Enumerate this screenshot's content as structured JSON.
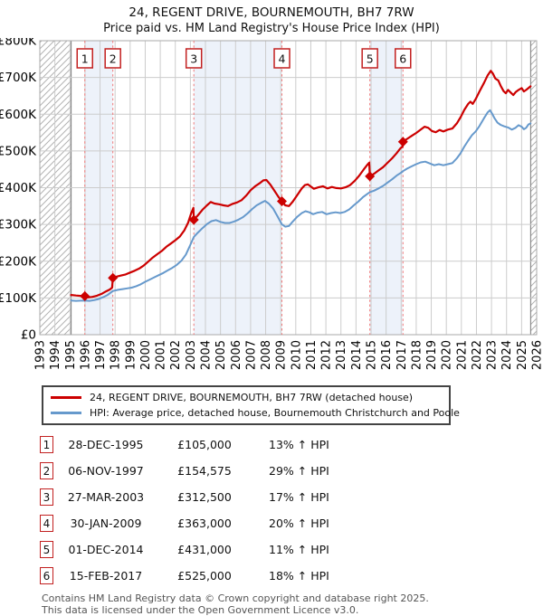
{
  "accent_red": "#cc0000",
  "chart_data": {
    "type": "line",
    "title": "24, REGENT DRIVE, BOURNEMOUTH, BH7 7RW",
    "subtitle": "Price paid vs. HM Land Registry's House Price Index (HPI)",
    "xlim": [
      1993,
      2026
    ],
    "ylim": [
      0,
      800
    ],
    "grid": true,
    "x_tick_years": [
      1993,
      1994,
      1995,
      1996,
      1997,
      1998,
      1999,
      2000,
      2001,
      2002,
      2003,
      2004,
      2005,
      2006,
      2007,
      2008,
      2009,
      2010,
      2011,
      2012,
      2013,
      2014,
      2015,
      2016,
      2017,
      2018,
      2019,
      2020,
      2021,
      2022,
      2023,
      2024,
      2025,
      2026
    ],
    "y_tick_values": [
      0,
      100,
      200,
      300,
      400,
      500,
      600,
      700,
      800
    ],
    "y_tick_labels": [
      "£0",
      "£100K",
      "£200K",
      "£300K",
      "£400K",
      "£500K",
      "£600K",
      "£700K",
      "£800K"
    ],
    "data_start_year": 1995.08,
    "data_end_year": 2025.6,
    "ownership_bands": [
      [
        1995.99,
        1997.85
      ],
      [
        2003.23,
        2009.08
      ],
      [
        2014.92,
        2017.12
      ]
    ],
    "colors": {
      "price_line": "#cc0000",
      "hpi_line": "#6699cc",
      "sale_dashed": "#f07878",
      "band_fill": "#edf2fa",
      "gridline": "#cccccc",
      "plot_border": "#aaaaaa",
      "hatch_line": "#b3b3b3",
      "boundary_line": "#777777",
      "marker_box_border": "#c22020",
      "diamond": "#cc0000"
    },
    "series": [
      {
        "name": "24, REGENT DRIVE, BOURNEMOUTH, BH7 7RW (detached house)",
        "points": [
          [
            1995.08,
            108
          ],
          [
            1995.4,
            106.5
          ],
          [
            1995.7,
            105.5
          ],
          [
            1995.99,
            105
          ],
          [
            1996.2,
            101.5
          ],
          [
            1996.5,
            103
          ],
          [
            1996.8,
            106
          ],
          [
            1997.1,
            111
          ],
          [
            1997.4,
            118
          ],
          [
            1997.65,
            123
          ],
          [
            1997.8,
            128
          ],
          [
            1997.85,
            154.6
          ],
          [
            1998.1,
            158
          ],
          [
            1998.4,
            161
          ],
          [
            1998.7,
            164
          ],
          [
            1999.0,
            169
          ],
          [
            1999.3,
            174
          ],
          [
            1999.6,
            180
          ],
          [
            1999.9,
            188
          ],
          [
            2000.2,
            199
          ],
          [
            2000.5,
            210
          ],
          [
            2000.8,
            219
          ],
          [
            2001.1,
            228
          ],
          [
            2001.4,
            239
          ],
          [
            2001.7,
            248
          ],
          [
            2002.0,
            257
          ],
          [
            2002.3,
            267
          ],
          [
            2002.6,
            284
          ],
          [
            2002.85,
            305
          ],
          [
            2003.05,
            330
          ],
          [
            2003.2,
            345
          ],
          [
            2003.23,
            312.5
          ],
          [
            2003.5,
            325
          ],
          [
            2003.8,
            340
          ],
          [
            2004.1,
            352
          ],
          [
            2004.35,
            361
          ],
          [
            2004.6,
            357
          ],
          [
            2004.9,
            355
          ],
          [
            2005.2,
            352
          ],
          [
            2005.5,
            350
          ],
          [
            2005.8,
            356
          ],
          [
            2006.1,
            360
          ],
          [
            2006.4,
            366
          ],
          [
            2006.7,
            378
          ],
          [
            2007.0,
            393
          ],
          [
            2007.3,
            404
          ],
          [
            2007.6,
            412
          ],
          [
            2007.85,
            420
          ],
          [
            2008.05,
            421
          ],
          [
            2008.3,
            409
          ],
          [
            2008.6,
            391
          ],
          [
            2008.85,
            375
          ],
          [
            2009.08,
            363
          ],
          [
            2009.3,
            352
          ],
          [
            2009.55,
            350
          ],
          [
            2009.8,
            362
          ],
          [
            2010.1,
            380
          ],
          [
            2010.4,
            398
          ],
          [
            2010.6,
            407
          ],
          [
            2010.8,
            409
          ],
          [
            2011.0,
            403
          ],
          [
            2011.2,
            397
          ],
          [
            2011.5,
            401
          ],
          [
            2011.8,
            404
          ],
          [
            2012.1,
            398
          ],
          [
            2012.4,
            402
          ],
          [
            2012.7,
            399
          ],
          [
            2013.0,
            398
          ],
          [
            2013.3,
            401
          ],
          [
            2013.6,
            407
          ],
          [
            2013.9,
            418
          ],
          [
            2014.2,
            432
          ],
          [
            2014.5,
            449
          ],
          [
            2014.75,
            462
          ],
          [
            2014.88,
            468
          ],
          [
            2014.92,
            431
          ],
          [
            2015.2,
            438
          ],
          [
            2015.5,
            447
          ],
          [
            2015.8,
            456
          ],
          [
            2016.1,
            468
          ],
          [
            2016.4,
            480
          ],
          [
            2016.7,
            494
          ],
          [
            2016.95,
            507
          ],
          [
            2017.1,
            512
          ],
          [
            2017.12,
            525
          ],
          [
            2017.4,
            533
          ],
          [
            2017.7,
            541
          ],
          [
            2018.0,
            549
          ],
          [
            2018.3,
            558
          ],
          [
            2018.55,
            566
          ],
          [
            2018.8,
            563
          ],
          [
            2019.05,
            554
          ],
          [
            2019.3,
            551
          ],
          [
            2019.55,
            557
          ],
          [
            2019.8,
            553
          ],
          [
            2020.1,
            558
          ],
          [
            2020.4,
            561
          ],
          [
            2020.7,
            575
          ],
          [
            2020.95,
            592
          ],
          [
            2021.2,
            612
          ],
          [
            2021.45,
            628
          ],
          [
            2021.6,
            634
          ],
          [
            2021.75,
            628
          ],
          [
            2021.95,
            641
          ],
          [
            2022.2,
            662
          ],
          [
            2022.5,
            685
          ],
          [
            2022.75,
            706
          ],
          [
            2022.95,
            718
          ],
          [
            2023.1,
            710
          ],
          [
            2023.25,
            697
          ],
          [
            2023.45,
            692
          ],
          [
            2023.6,
            678
          ],
          [
            2023.8,
            663
          ],
          [
            2023.95,
            657
          ],
          [
            2024.1,
            666
          ],
          [
            2024.3,
            658
          ],
          [
            2024.45,
            652
          ],
          [
            2024.6,
            660
          ],
          [
            2024.8,
            666
          ],
          [
            2025.0,
            671
          ],
          [
            2025.15,
            662
          ],
          [
            2025.3,
            666
          ],
          [
            2025.45,
            671
          ],
          [
            2025.6,
            676
          ]
        ]
      },
      {
        "name": "HPI: Average price, detached house, Bournemouth Christchurch and Poole",
        "points": [
          [
            1995.08,
            93
          ],
          [
            1995.4,
            92
          ],
          [
            1995.7,
            92.5
          ],
          [
            1995.99,
            93
          ],
          [
            1996.3,
            92
          ],
          [
            1996.6,
            94
          ],
          [
            1996.9,
            97
          ],
          [
            1997.2,
            102
          ],
          [
            1997.5,
            108
          ],
          [
            1997.85,
            119
          ],
          [
            1998.2,
            122
          ],
          [
            1998.5,
            124
          ],
          [
            1998.8,
            126
          ],
          [
            1999.1,
            128
          ],
          [
            1999.4,
            132
          ],
          [
            1999.7,
            137
          ],
          [
            2000.0,
            144
          ],
          [
            2000.3,
            150
          ],
          [
            2000.6,
            156
          ],
          [
            2000.9,
            162
          ],
          [
            2001.2,
            168
          ],
          [
            2001.5,
            175
          ],
          [
            2001.8,
            182
          ],
          [
            2002.1,
            190
          ],
          [
            2002.4,
            201
          ],
          [
            2002.7,
            218
          ],
          [
            2003.0,
            245
          ],
          [
            2003.23,
            266
          ],
          [
            2003.5,
            278
          ],
          [
            2003.8,
            290
          ],
          [
            2004.1,
            301
          ],
          [
            2004.4,
            309
          ],
          [
            2004.7,
            312
          ],
          [
            2005.0,
            307
          ],
          [
            2005.3,
            304
          ],
          [
            2005.6,
            304
          ],
          [
            2005.9,
            308
          ],
          [
            2006.2,
            313
          ],
          [
            2006.5,
            320
          ],
          [
            2006.8,
            330
          ],
          [
            2007.1,
            342
          ],
          [
            2007.4,
            352
          ],
          [
            2007.7,
            359
          ],
          [
            2007.95,
            364
          ],
          [
            2008.2,
            357
          ],
          [
            2008.5,
            343
          ],
          [
            2008.8,
            321
          ],
          [
            2009.08,
            300
          ],
          [
            2009.3,
            294
          ],
          [
            2009.55,
            296
          ],
          [
            2009.8,
            308
          ],
          [
            2010.1,
            321
          ],
          [
            2010.4,
            331
          ],
          [
            2010.65,
            336
          ],
          [
            2010.9,
            333
          ],
          [
            2011.15,
            328
          ],
          [
            2011.45,
            332
          ],
          [
            2011.75,
            334
          ],
          [
            2012.05,
            328
          ],
          [
            2012.35,
            331
          ],
          [
            2012.65,
            333
          ],
          [
            2012.95,
            331
          ],
          [
            2013.25,
            334
          ],
          [
            2013.55,
            341
          ],
          [
            2013.85,
            352
          ],
          [
            2014.15,
            362
          ],
          [
            2014.45,
            374
          ],
          [
            2014.75,
            383
          ],
          [
            2014.92,
            388
          ],
          [
            2015.2,
            392
          ],
          [
            2015.5,
            398
          ],
          [
            2015.8,
            405
          ],
          [
            2016.1,
            414
          ],
          [
            2016.4,
            423
          ],
          [
            2016.7,
            433
          ],
          [
            2017.0,
            441
          ],
          [
            2017.12,
            445
          ],
          [
            2017.4,
            452
          ],
          [
            2017.7,
            458
          ],
          [
            2018.0,
            464
          ],
          [
            2018.3,
            469
          ],
          [
            2018.6,
            471
          ],
          [
            2018.9,
            466
          ],
          [
            2019.2,
            461
          ],
          [
            2019.5,
            464
          ],
          [
            2019.8,
            461
          ],
          [
            2020.1,
            464
          ],
          [
            2020.4,
            467
          ],
          [
            2020.7,
            480
          ],
          [
            2020.95,
            494
          ],
          [
            2021.2,
            512
          ],
          [
            2021.45,
            528
          ],
          [
            2021.7,
            543
          ],
          [
            2021.95,
            553
          ],
          [
            2022.2,
            568
          ],
          [
            2022.5,
            589
          ],
          [
            2022.75,
            605
          ],
          [
            2022.9,
            611
          ],
          [
            2023.05,
            601
          ],
          [
            2023.2,
            589
          ],
          [
            2023.4,
            577
          ],
          [
            2023.6,
            571
          ],
          [
            2023.85,
            567
          ],
          [
            2024.1,
            564
          ],
          [
            2024.35,
            558
          ],
          [
            2024.6,
            563
          ],
          [
            2024.8,
            570
          ],
          [
            2025.0,
            566
          ],
          [
            2025.15,
            559
          ],
          [
            2025.3,
            563
          ],
          [
            2025.45,
            572
          ],
          [
            2025.6,
            575
          ]
        ]
      }
    ],
    "sales": [
      {
        "num": "1",
        "year": 1995.99,
        "priceK": 105,
        "date": "28-DEC-1995",
        "price": "£105,000",
        "hpi": "13% ↑ HPI"
      },
      {
        "num": "2",
        "year": 1997.85,
        "priceK": 154.575,
        "date": "06-NOV-1997",
        "price": "£154,575",
        "hpi": "29% ↑ HPI"
      },
      {
        "num": "3",
        "year": 2003.23,
        "priceK": 312.5,
        "date": "27-MAR-2003",
        "price": "£312,500",
        "hpi": "17% ↑ HPI"
      },
      {
        "num": "4",
        "year": 2009.08,
        "priceK": 363,
        "date": "30-JAN-2009",
        "price": "£363,000",
        "hpi": "20% ↑ HPI"
      },
      {
        "num": "5",
        "year": 2014.92,
        "priceK": 431,
        "date": "01-DEC-2014",
        "price": "£431,000",
        "hpi": "11% ↑ HPI"
      },
      {
        "num": "6",
        "year": 2017.12,
        "priceK": 525,
        "date": "15-FEB-2017",
        "price": "£525,000",
        "hpi": "18% ↑ HPI"
      }
    ]
  },
  "legend": {
    "entries": [
      {
        "color": "#cc0000",
        "label": "24, REGENT DRIVE, BOURNEMOUTH, BH7 7RW (detached house)"
      },
      {
        "color": "#6699cc",
        "label": "HPI: Average price, detached house, Bournemouth Christchurch and Poole"
      }
    ]
  },
  "footer": {
    "line1": "Contains HM Land Registry data © Crown copyright and database right 2025.",
    "line2": "This data is licensed under the Open Government Licence v3.0."
  }
}
